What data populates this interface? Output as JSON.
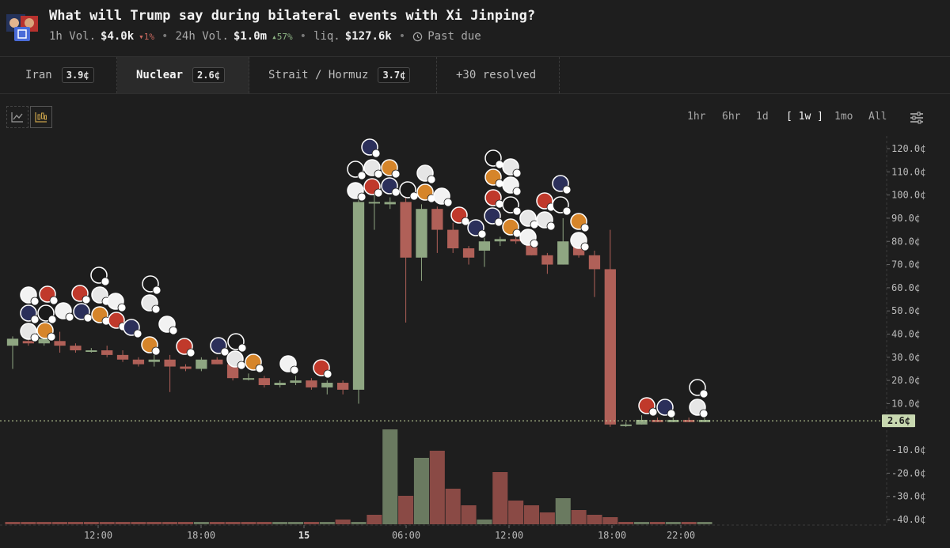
{
  "header": {
    "title": "What will Trump say during bilateral events with Xi Jinping?",
    "vol_1h_label": "1h Vol.",
    "vol_1h": "$4.0k",
    "vol_1h_change": "1%",
    "vol_24h_label": "24h Vol.",
    "vol_24h": "$1.0m",
    "vol_24h_change": "57%",
    "liq_label": "liq.",
    "liq": "$127.6k",
    "status": "Past due",
    "icons": [
      "market-thumbnail",
      "clock-icon"
    ]
  },
  "tabs": [
    {
      "label": "Iran",
      "price": "3.9¢"
    },
    {
      "label": "Nuclear",
      "price": "2.6¢",
      "active": true
    },
    {
      "label": "Strait / Hormuz",
      "price": "3.7¢"
    },
    {
      "label": "+30 resolved"
    }
  ],
  "chart_controls": {
    "icons": [
      "line-chart-icon",
      "candlestick-chart-icon",
      "settings-sliders-icon"
    ],
    "ranges": [
      "1hr",
      "6hr",
      "1d",
      "[ 1w ]",
      "1mo",
      "All"
    ],
    "selected_range": "[ 1w ]"
  },
  "colors": {
    "up": "#8fa682",
    "down": "#b06058",
    "vol_up": "#6a7a60",
    "vol_down": "#8a4a45",
    "background": "#1e1e1e",
    "current_price_badge": "#c8d8b0"
  },
  "chart_data": {
    "type": "candlestick",
    "x_ticks": [
      "12:00",
      "18:00",
      "15",
      "06:00",
      "12:00",
      "18:00",
      "22:00"
    ],
    "y_ticks": [
      "120.0¢",
      "110.0¢",
      "100.0¢",
      "90.0¢",
      "80.0¢",
      "70.0¢",
      "60.0¢",
      "50.0¢",
      "40.0¢",
      "30.0¢",
      "20.0¢",
      "10.0¢",
      "-10.0¢",
      "-20.0¢",
      "-30.0¢",
      "-40.0¢"
    ],
    "ylim": [
      -42,
      122
    ],
    "current_price": "2.6¢",
    "current_price_value": 2.6,
    "candles": [
      {
        "o": 35,
        "c": 38,
        "h": 39,
        "l": 25
      },
      {
        "o": 37,
        "c": 36,
        "h": 40,
        "l": 35
      },
      {
        "o": 36,
        "c": 38,
        "h": 40,
        "l": 35
      },
      {
        "o": 37,
        "c": 35,
        "h": 41,
        "l": 32
      },
      {
        "o": 35,
        "c": 33,
        "h": 36,
        "l": 32
      },
      {
        "o": 33,
        "c": 33,
        "h": 34,
        "l": 32
      },
      {
        "o": 33,
        "c": 31,
        "h": 35,
        "l": 30
      },
      {
        "o": 31,
        "c": 29,
        "h": 33,
        "l": 28
      },
      {
        "o": 29,
        "c": 27,
        "h": 30,
        "l": 26
      },
      {
        "o": 28,
        "c": 29,
        "h": 31,
        "l": 26
      },
      {
        "o": 29,
        "c": 26,
        "h": 31,
        "l": 15
      },
      {
        "o": 26,
        "c": 25,
        "h": 27,
        "l": 24
      },
      {
        "o": 25,
        "c": 29,
        "h": 30,
        "l": 24
      },
      {
        "o": 29,
        "c": 27,
        "h": 30,
        "l": 27
      },
      {
        "o": 27,
        "c": 21,
        "h": 28,
        "l": 20
      },
      {
        "o": 21,
        "c": 21,
        "h": 23,
        "l": 20
      },
      {
        "o": 21,
        "c": 18,
        "h": 22,
        "l": 17
      },
      {
        "o": 18,
        "c": 19,
        "h": 20,
        "l": 17
      },
      {
        "o": 19,
        "c": 20,
        "h": 22,
        "l": 18
      },
      {
        "o": 20,
        "c": 17,
        "h": 21,
        "l": 16
      },
      {
        "o": 17,
        "c": 19,
        "h": 20,
        "l": 14
      },
      {
        "o": 19,
        "c": 16,
        "h": 20,
        "l": 14
      },
      {
        "o": 16,
        "c": 97,
        "h": 99,
        "l": 10
      },
      {
        "o": 97,
        "c": 97,
        "h": 100,
        "l": 85
      },
      {
        "o": 96,
        "c": 97,
        "h": 99,
        "l": 94
      },
      {
        "o": 97,
        "c": 73,
        "h": 100,
        "l": 45
      },
      {
        "o": 73,
        "c": 94,
        "h": 96,
        "l": 63
      },
      {
        "o": 94,
        "c": 85,
        "h": 95,
        "l": 75
      },
      {
        "o": 85,
        "c": 77,
        "h": 88,
        "l": 75
      },
      {
        "o": 77,
        "c": 73,
        "h": 78,
        "l": 70
      },
      {
        "o": 76,
        "c": 80,
        "h": 82,
        "l": 69
      },
      {
        "o": 80,
        "c": 81,
        "h": 82,
        "l": 78
      },
      {
        "o": 81,
        "c": 80,
        "h": 83,
        "l": 79
      },
      {
        "o": 80,
        "c": 74,
        "h": 85,
        "l": 74
      },
      {
        "o": 74,
        "c": 70,
        "h": 75,
        "l": 66
      },
      {
        "o": 70,
        "c": 80,
        "h": 90,
        "l": 70
      },
      {
        "o": 80,
        "c": 74,
        "h": 82,
        "l": 73
      },
      {
        "o": 74,
        "c": 68,
        "h": 76,
        "l": 56
      },
      {
        "o": 68,
        "c": 1,
        "h": 85,
        "l": 0
      },
      {
        "o": 1,
        "c": 1,
        "h": 2,
        "l": 0
      },
      {
        "o": 1,
        "c": 3,
        "h": 5,
        "l": 1
      },
      {
        "o": 3,
        "c": 2,
        "h": 4,
        "l": 2
      },
      {
        "o": 2,
        "c": 3,
        "h": 5,
        "l": 2
      },
      {
        "o": 3,
        "c": 2,
        "h": 4,
        "l": 2
      },
      {
        "o": 2,
        "c": 3,
        "h": 4,
        "l": 2
      }
    ],
    "volume_heights": [
      1,
      1,
      1,
      1,
      1,
      1,
      1,
      1,
      1,
      1,
      1,
      1,
      1,
      1,
      1,
      1,
      1,
      1,
      1,
      1,
      1,
      2,
      1,
      4,
      40,
      12,
      28,
      31,
      15,
      8,
      2,
      22,
      10,
      8,
      5,
      11,
      6,
      4,
      3,
      1,
      1,
      1,
      1,
      1,
      1
    ],
    "volume_up": [
      false,
      false,
      false,
      false,
      false,
      false,
      false,
      false,
      false,
      false,
      false,
      false,
      true,
      false,
      false,
      false,
      false,
      true,
      true,
      false,
      true,
      false,
      true,
      false,
      true,
      false,
      true,
      false,
      false,
      false,
      true,
      false,
      false,
      false,
      false,
      true,
      false,
      false,
      false,
      false,
      true,
      false,
      true,
      false,
      true
    ]
  }
}
